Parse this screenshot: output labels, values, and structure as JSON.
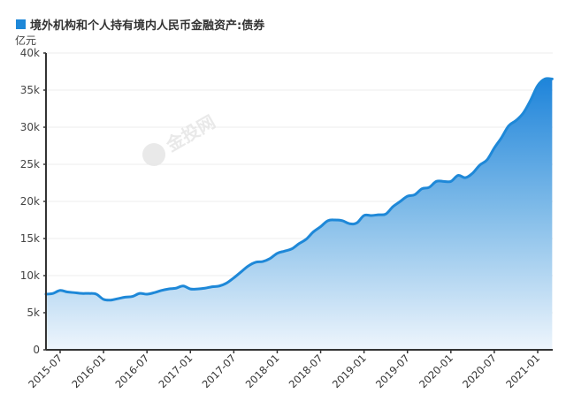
{
  "header": {
    "title": "境外机构和个人持有境内人民币金融资产:债券",
    "unit": "亿元",
    "legend_color": "#1e88d8"
  },
  "watermarks": [
    "金投网",
    "金投网"
  ],
  "colors": {
    "line": "#1e88d8",
    "fill_top": "#2a8bde",
    "fill_bottom": "#eef5fc",
    "grid": "#ececec",
    "axis": "#333333"
  },
  "chart_data": {
    "type": "area",
    "title": "境外机构和个人持有境内人民币金融资产:债券",
    "xlabel": "",
    "ylabel": "亿元",
    "ylim": [
      0,
      40000
    ],
    "yticks": [
      0,
      5000,
      10000,
      15000,
      20000,
      25000,
      30000,
      35000,
      40000
    ],
    "ytick_labels": [
      "0",
      "5k",
      "10k",
      "15k",
      "20k",
      "25k",
      "30k",
      "35k",
      "40k"
    ],
    "xtick_labels": [
      "2015-07",
      "2016-01",
      "2016-07",
      "2017-01",
      "2017-07",
      "2018-01",
      "2018-07",
      "2019-01",
      "2019-07",
      "2020-01",
      "2020-07",
      "2021-01"
    ],
    "grid": true,
    "legend": [
      "境外机构和个人持有境内人民币金融资产:债券"
    ],
    "legend_position": "top-left",
    "x": [
      "2015-05",
      "2015-06",
      "2015-07",
      "2015-08",
      "2015-09",
      "2015-10",
      "2015-11",
      "2015-12",
      "2016-01",
      "2016-02",
      "2016-03",
      "2016-04",
      "2016-05",
      "2016-06",
      "2016-07",
      "2016-08",
      "2016-09",
      "2016-10",
      "2016-11",
      "2016-12",
      "2017-01",
      "2017-02",
      "2017-03",
      "2017-04",
      "2017-05",
      "2017-06",
      "2017-07",
      "2017-08",
      "2017-09",
      "2017-10",
      "2017-11",
      "2017-12",
      "2018-01",
      "2018-02",
      "2018-03",
      "2018-04",
      "2018-05",
      "2018-06",
      "2018-07",
      "2018-08",
      "2018-09",
      "2018-10",
      "2018-11",
      "2018-12",
      "2019-01",
      "2019-02",
      "2019-03",
      "2019-04",
      "2019-05",
      "2019-06",
      "2019-07",
      "2019-08",
      "2019-09",
      "2019-10",
      "2019-11",
      "2019-12",
      "2020-01",
      "2020-02",
      "2020-03",
      "2020-04",
      "2020-05",
      "2020-06",
      "2020-07",
      "2020-08",
      "2020-09",
      "2020-10",
      "2020-11",
      "2020-12",
      "2021-01",
      "2021-02",
      "2021-03"
    ],
    "series": [
      {
        "name": "境外机构和个人持有境内人民币金融资产:债券",
        "values": [
          7500,
          7600,
          8000,
          7800,
          7700,
          7600,
          7600,
          7500,
          6800,
          6700,
          6900,
          7100,
          7200,
          7600,
          7500,
          7700,
          8000,
          8200,
          8300,
          8600,
          8200,
          8200,
          8300,
          8500,
          8600,
          9000,
          9700,
          10500,
          11300,
          11800,
          11900,
          12300,
          13000,
          13300,
          13600,
          14300,
          14900,
          15900,
          16600,
          17400,
          17500,
          17400,
          17000,
          17100,
          18100,
          18100,
          18200,
          18300,
          19300,
          20000,
          20700,
          20900,
          21700,
          21900,
          22700,
          22700,
          22700,
          23500,
          23200,
          23800,
          24900,
          25600,
          27200,
          28600,
          30200,
          30900,
          31900,
          33600,
          35600,
          36500,
          36500
        ]
      }
    ]
  }
}
